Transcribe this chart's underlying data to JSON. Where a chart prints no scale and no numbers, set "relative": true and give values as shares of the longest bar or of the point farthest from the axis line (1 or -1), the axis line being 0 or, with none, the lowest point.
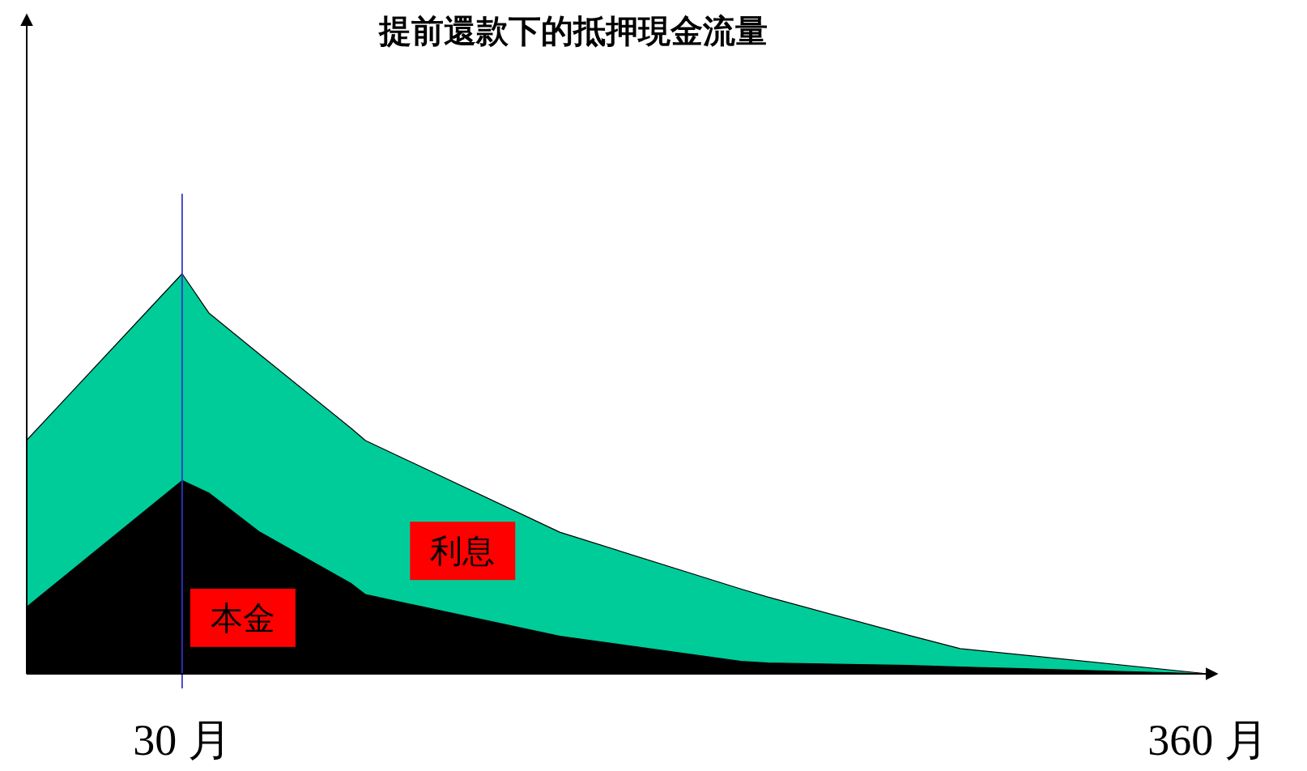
{
  "chart_data": {
    "type": "area",
    "title": "提前還款下的抵押現金流量",
    "stacked": true,
    "relative": true,
    "legend": false,
    "x": [
      -20,
      30,
      38.6,
      55,
      84.5,
      89,
      151.5,
      209.8,
      218.4,
      264,
      280.3,
      360
    ],
    "xlim": [
      -20,
      363
    ],
    "xticks": [
      {
        "value": 30,
        "label": "30 月"
      },
      {
        "value": 360,
        "label": "360 月"
      }
    ],
    "series": [
      {
        "name": "本金",
        "color": "#000000",
        "values": [
          0.167,
          0.483,
          0.452,
          0.354,
          0.225,
          0.198,
          0.094,
          0.031,
          0.027,
          0.021,
          0.017,
          0
        ]
      },
      {
        "name": "利息",
        "color": "#00cc99",
        "values": [
          0.417,
          0.517,
          0.45,
          0.444,
          0.388,
          0.385,
          0.26,
          0.181,
          0.165,
          0.075,
          0.046,
          0
        ]
      }
    ],
    "ref_lines": [
      {
        "axis": "x",
        "value": 30,
        "color": "#3333cc"
      }
    ]
  }
}
